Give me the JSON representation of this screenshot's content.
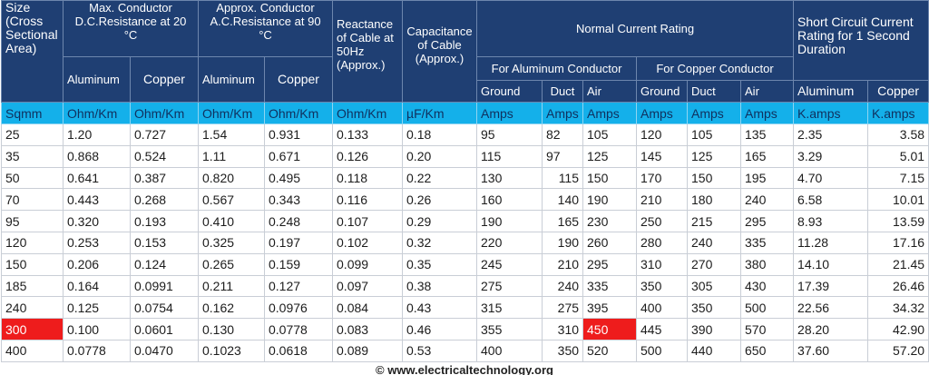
{
  "table": {
    "headers": {
      "size": "Size (Cross Sectional Area)",
      "dc_resistance": "Max. Conductor D.C.Resistance at 20 °C",
      "ac_resistance": "Approx. Conductor A.C.Resistance at 90 °C",
      "reactance": "Reactance of Cable at 50Hz (Approx.)",
      "capacitance": "Capacitance of Cable (Approx.)",
      "normal_current": "Normal Current Rating",
      "short_circuit": "Short Circuit Current Rating for 1 Second Duration",
      "for_aluminum": "For Aluminum Conductor",
      "for_copper": "For Copper Conductor",
      "dc_sub": [
        "Aluminum",
        "Copper"
      ],
      "ac_sub": [
        "Aluminum",
        "Copper"
      ],
      "aluminum_sub": [
        "Ground",
        "Duct",
        "Air"
      ],
      "copper_sub": [
        "Ground",
        "Duct",
        "Air"
      ],
      "short_sub": [
        "Aluminum",
        "Copper"
      ]
    },
    "units": [
      "Sqmm",
      "Ohm/Km",
      "Ohm/Km",
      "Ohm/Km",
      "Ohm/Km",
      "Ohm/Km",
      "µF/Km",
      "Amps",
      "Amps",
      "Amps",
      "Amps",
      "Amps",
      "Amps",
      "K.amps",
      "K.amps"
    ],
    "rows": [
      [
        "25",
        "1.20",
        "0.727",
        "1.54",
        "0.931",
        "0.133",
        "0.18",
        "95",
        "82",
        "105",
        "120",
        "105",
        "135",
        "2.35",
        "3.58"
      ],
      [
        "35",
        "0.868",
        "0.524",
        "1.11",
        "0.671",
        "0.126",
        "0.20",
        "115",
        "97",
        "125",
        "145",
        "125",
        "165",
        "3.29",
        "5.01"
      ],
      [
        "50",
        "0.641",
        "0.387",
        "0.820",
        "0.495",
        "0.118",
        "0.22",
        "130",
        "115",
        "150",
        "170",
        "150",
        "195",
        "4.70",
        "7.15"
      ],
      [
        "70",
        "0.443",
        "0.268",
        "0.567",
        "0.343",
        "0.116",
        "0.26",
        "160",
        "140",
        "190",
        "210",
        "180",
        "240",
        "6.58",
        "10.01"
      ],
      [
        "95",
        "0.320",
        "0.193",
        "0.410",
        "0.248",
        "0.107",
        "0.29",
        "190",
        "165",
        "230",
        "250",
        "215",
        "295",
        "8.93",
        "13.59"
      ],
      [
        "120",
        "0.253",
        "0.153",
        "0.325",
        "0.197",
        "0.102",
        "0.32",
        "220",
        "190",
        "260",
        "280",
        "240",
        "335",
        "11.28",
        "17.16"
      ],
      [
        "150",
        "0.206",
        "0.124",
        "0.265",
        "0.159",
        "0.099",
        "0.35",
        "245",
        "210",
        "295",
        "310",
        "270",
        "380",
        "14.10",
        "21.45"
      ],
      [
        "185",
        "0.164",
        "0.0991",
        "0.211",
        "0.127",
        "0.097",
        "0.38",
        "275",
        "240",
        "335",
        "350",
        "305",
        "430",
        "17.39",
        "26.46"
      ],
      [
        "240",
        "0.125",
        "0.0754",
        "0.162",
        "0.0976",
        "0.084",
        "0.43",
        "315",
        "275",
        "395",
        "400",
        "350",
        "500",
        "22.56",
        "34.32"
      ],
      [
        "300",
        "0.100",
        "0.0601",
        "0.130",
        "0.0778",
        "0.083",
        "0.46",
        "355",
        "310",
        "450",
        "445",
        "390",
        "570",
        "28.20",
        "42.90"
      ],
      [
        "400",
        "0.0778",
        "0.0470",
        "0.1023",
        "0.0618",
        "0.089",
        "0.53",
        "400",
        "350",
        "520",
        "500",
        "440",
        "650",
        "37.60",
        "57.20"
      ]
    ]
  },
  "footer": "© www.electricaltechnology.org"
}
